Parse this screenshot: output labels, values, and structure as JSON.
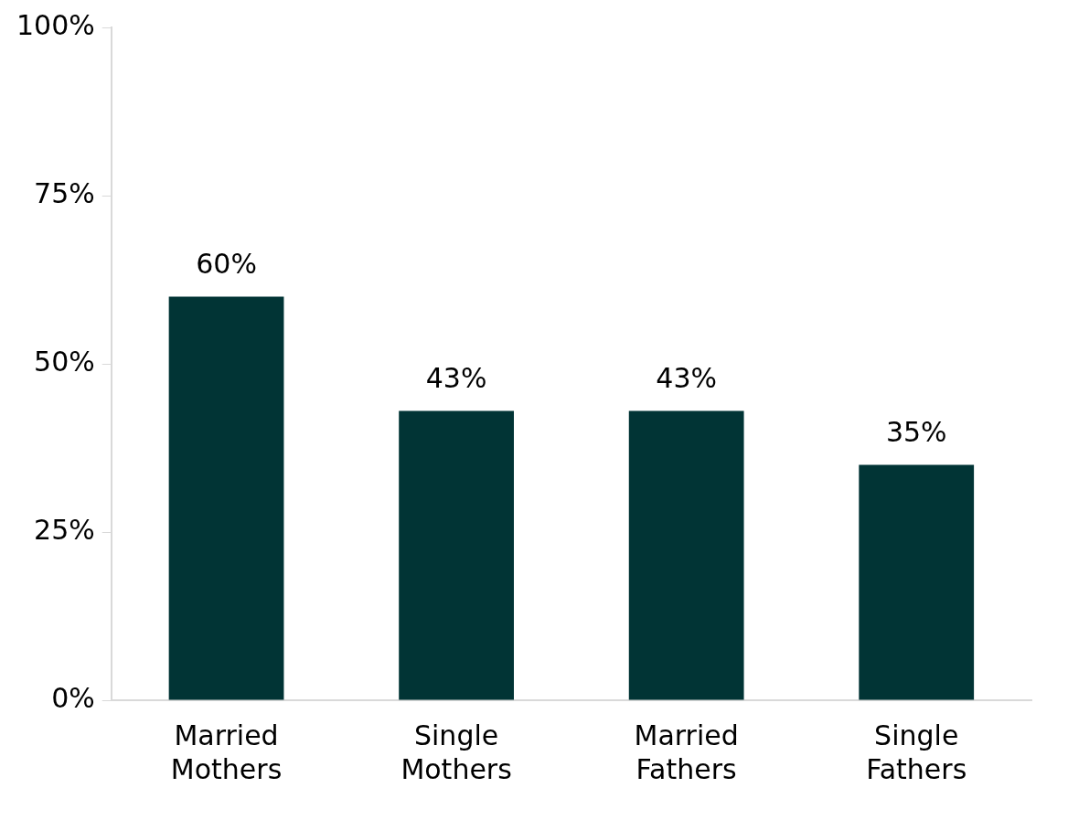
{
  "chart_data": {
    "type": "bar",
    "categories": [
      "Married Mothers",
      "Single Mothers",
      "Married Fathers",
      "Single Fathers"
    ],
    "values": [
      60,
      43,
      43,
      35
    ],
    "value_labels": [
      "60%",
      "43%",
      "43%",
      "35%"
    ],
    "color": "#013435",
    "ylim": [
      0,
      100
    ],
    "yticks": [
      {
        "value": 0,
        "label": "0%"
      },
      {
        "value": 25,
        "label": "25%"
      },
      {
        "value": 50,
        "label": "50%"
      },
      {
        "value": 75,
        "label": "75%"
      },
      {
        "value": 100,
        "label": "100%"
      }
    ],
    "grid": false,
    "data_labels": true
  }
}
